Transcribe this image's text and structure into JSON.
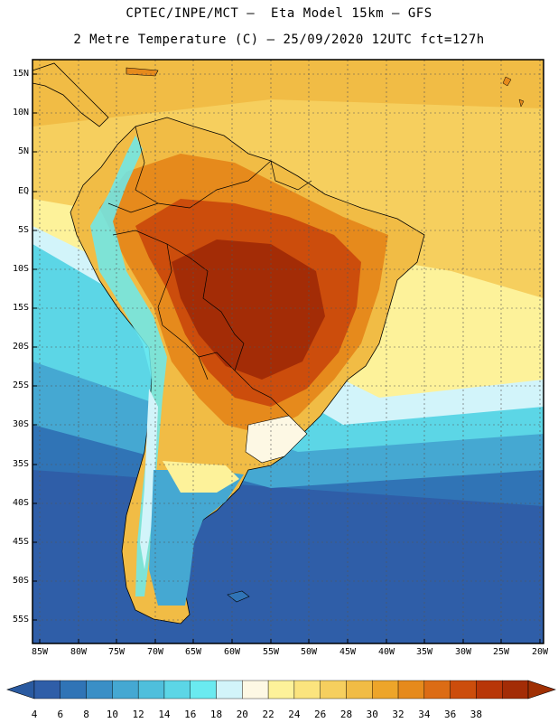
{
  "title": {
    "line1": "CPTEC/INPE/MCT –  Eta Model 15km – GFS",
    "line2": "2 Metre Temperature (C) – 25/09/2020 12UTC fct=127h"
  },
  "lat_labels": [
    "15N",
    "10N",
    "5N",
    "EQ",
    "5S",
    "10S",
    "15S",
    "20S",
    "25S",
    "30S",
    "35S",
    "40S",
    "45S",
    "50S",
    "55S"
  ],
  "lon_labels": [
    "85W",
    "80W",
    "75W",
    "70W",
    "65W",
    "60W",
    "55W",
    "50W",
    "45W",
    "40W",
    "35W",
    "30W",
    "25W",
    "20W"
  ],
  "colorbar": {
    "labels": [
      "4",
      "6",
      "8",
      "10",
      "12",
      "14",
      "16",
      "18",
      "20",
      "22",
      "24",
      "26",
      "28",
      "30",
      "32",
      "34",
      "36",
      "38"
    ],
    "colors": [
      "#2f5ea8",
      "#3074b6",
      "#3a8fc6",
      "#45a8d2",
      "#4fbfdc",
      "#5cd6e6",
      "#6aeaf0",
      "#d2f4fa",
      "#fdf8e4",
      "#fdf29a",
      "#fbe47e",
      "#f6cf5e",
      "#f1bc45",
      "#eda52a",
      "#e68a1c",
      "#dc6c15",
      "#cc4d0c",
      "#b83608",
      "#a32c06"
    ],
    "below_color": "#2a5aa0",
    "above_color": "#a03004"
  }
}
